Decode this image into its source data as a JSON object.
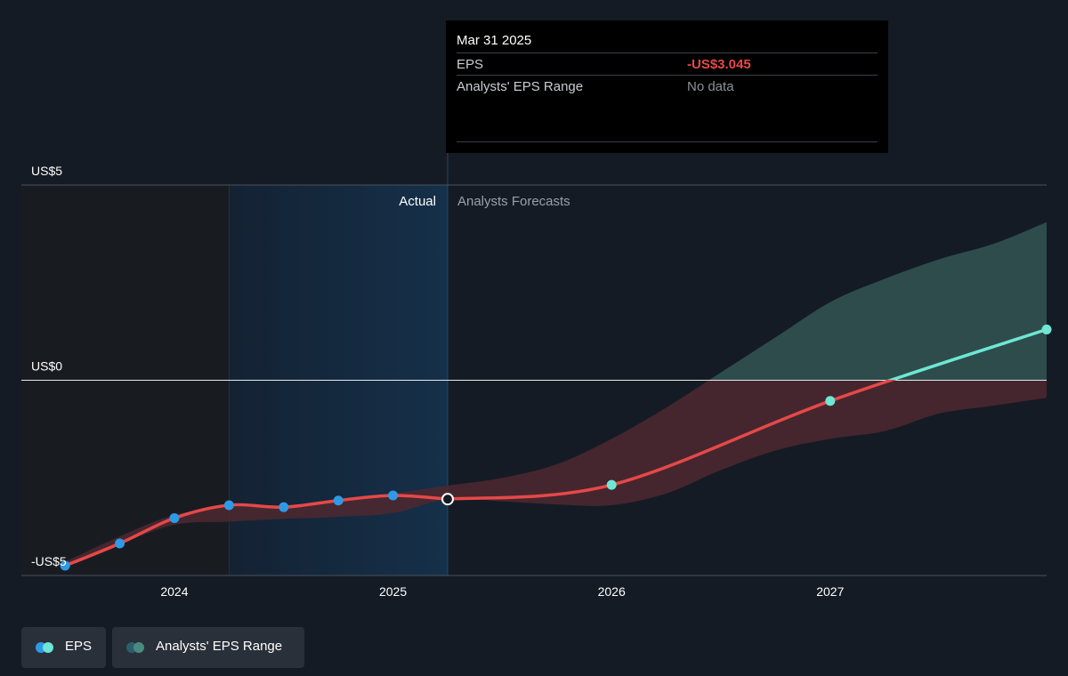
{
  "chart_data": {
    "type": "line",
    "y_axis": {
      "ticks": [
        {
          "value": 5,
          "label": "US$5"
        },
        {
          "value": 0,
          "label": "US$0"
        },
        {
          "value": -5,
          "label": "-US$5"
        }
      ],
      "ylim": [
        -5,
        5
      ]
    },
    "x_axis": {
      "ticks": [
        {
          "value": 2024,
          "label": "2024"
        },
        {
          "value": 2025,
          "label": "2025"
        },
        {
          "value": 2026,
          "label": "2026"
        },
        {
          "value": 2027,
          "label": "2027"
        }
      ],
      "xlim": [
        2023.3,
        2027.99
      ]
    },
    "regions": {
      "actual_label": "Actual",
      "forecast_label": "Analysts Forecasts",
      "actual_start": 2024.25,
      "split": 2025.25
    },
    "series": [
      {
        "name": "EPS",
        "color_actual": "#e64848",
        "color_forecast_positive": "#6ee7d5",
        "points_actual": [
          {
            "x": 2023.5,
            "y": -4.75
          },
          {
            "x": 2023.75,
            "y": -4.18
          },
          {
            "x": 2024.0,
            "y": -3.53
          },
          {
            "x": 2024.25,
            "y": -3.2
          },
          {
            "x": 2024.5,
            "y": -3.25
          },
          {
            "x": 2024.75,
            "y": -3.08
          },
          {
            "x": 2025.0,
            "y": -2.95
          },
          {
            "x": 2025.25,
            "y": -3.045
          }
        ],
        "points_forecast": [
          {
            "x": 2025.25,
            "y": -3.045
          },
          {
            "x": 2026.0,
            "y": -2.68
          },
          {
            "x": 2027.0,
            "y": -0.53
          },
          {
            "x": 2027.99,
            "y": 1.3
          }
        ]
      }
    ],
    "range_band": {
      "name": "Analysts' EPS Range",
      "upper": [
        {
          "x": 2023.5,
          "y": -4.65
        },
        {
          "x": 2023.75,
          "y": -4.0
        },
        {
          "x": 2024.0,
          "y": -3.45
        },
        {
          "x": 2024.25,
          "y": -3.25
        },
        {
          "x": 2024.5,
          "y": -3.25
        },
        {
          "x": 2024.75,
          "y": -3.05
        },
        {
          "x": 2025.0,
          "y": -2.9
        },
        {
          "x": 2025.25,
          "y": -2.7
        },
        {
          "x": 2025.5,
          "y": -2.5
        },
        {
          "x": 2025.75,
          "y": -2.15
        },
        {
          "x": 2026.0,
          "y": -1.5
        },
        {
          "x": 2026.25,
          "y": -0.7
        },
        {
          "x": 2026.5,
          "y": 0.2
        },
        {
          "x": 2026.75,
          "y": 1.1
        },
        {
          "x": 2027.0,
          "y": 2.0
        },
        {
          "x": 2027.25,
          "y": 2.6
        },
        {
          "x": 2027.5,
          "y": 3.1
        },
        {
          "x": 2027.75,
          "y": 3.5
        },
        {
          "x": 2027.99,
          "y": 4.05
        }
      ],
      "lower": [
        {
          "x": 2023.5,
          "y": -4.8
        },
        {
          "x": 2023.75,
          "y": -4.2
        },
        {
          "x": 2024.0,
          "y": -3.7
        },
        {
          "x": 2024.25,
          "y": -3.62
        },
        {
          "x": 2024.5,
          "y": -3.55
        },
        {
          "x": 2024.75,
          "y": -3.5
        },
        {
          "x": 2025.0,
          "y": -3.4
        },
        {
          "x": 2025.25,
          "y": -3.045
        },
        {
          "x": 2025.5,
          "y": -3.1
        },
        {
          "x": 2025.75,
          "y": -3.18
        },
        {
          "x": 2026.0,
          "y": -3.2
        },
        {
          "x": 2026.25,
          "y": -2.9
        },
        {
          "x": 2026.5,
          "y": -2.3
        },
        {
          "x": 2026.75,
          "y": -1.8
        },
        {
          "x": 2027.0,
          "y": -1.5
        },
        {
          "x": 2027.25,
          "y": -1.3
        },
        {
          "x": 2027.5,
          "y": -0.85
        },
        {
          "x": 2027.75,
          "y": -0.65
        },
        {
          "x": 2027.99,
          "y": -0.45
        }
      ],
      "color_positive": "#2f4f4f",
      "color_negative": "#4a2830"
    },
    "highlight_point": {
      "x": 2025.25,
      "y": -3.045
    }
  },
  "tooltip": {
    "date": "Mar 31 2025",
    "rows": [
      {
        "label": "EPS",
        "value": "-US$3.045"
      },
      {
        "label": "Analysts' EPS Range",
        "value": "No data"
      }
    ]
  },
  "legend": [
    {
      "label": "EPS",
      "dot_colors": [
        "#2e9ae6",
        "#6ee7d5"
      ]
    },
    {
      "label": "Analysts' EPS Range",
      "dot_colors": [
        "#2a5f6e",
        "#4a8a80"
      ]
    }
  ],
  "colors": {
    "background": "#151b24",
    "past_region": "#181c21",
    "actual_region": "#13283b",
    "eps_dot": "#2e9ae6",
    "forecast_dot": "#6ee7d5"
  }
}
